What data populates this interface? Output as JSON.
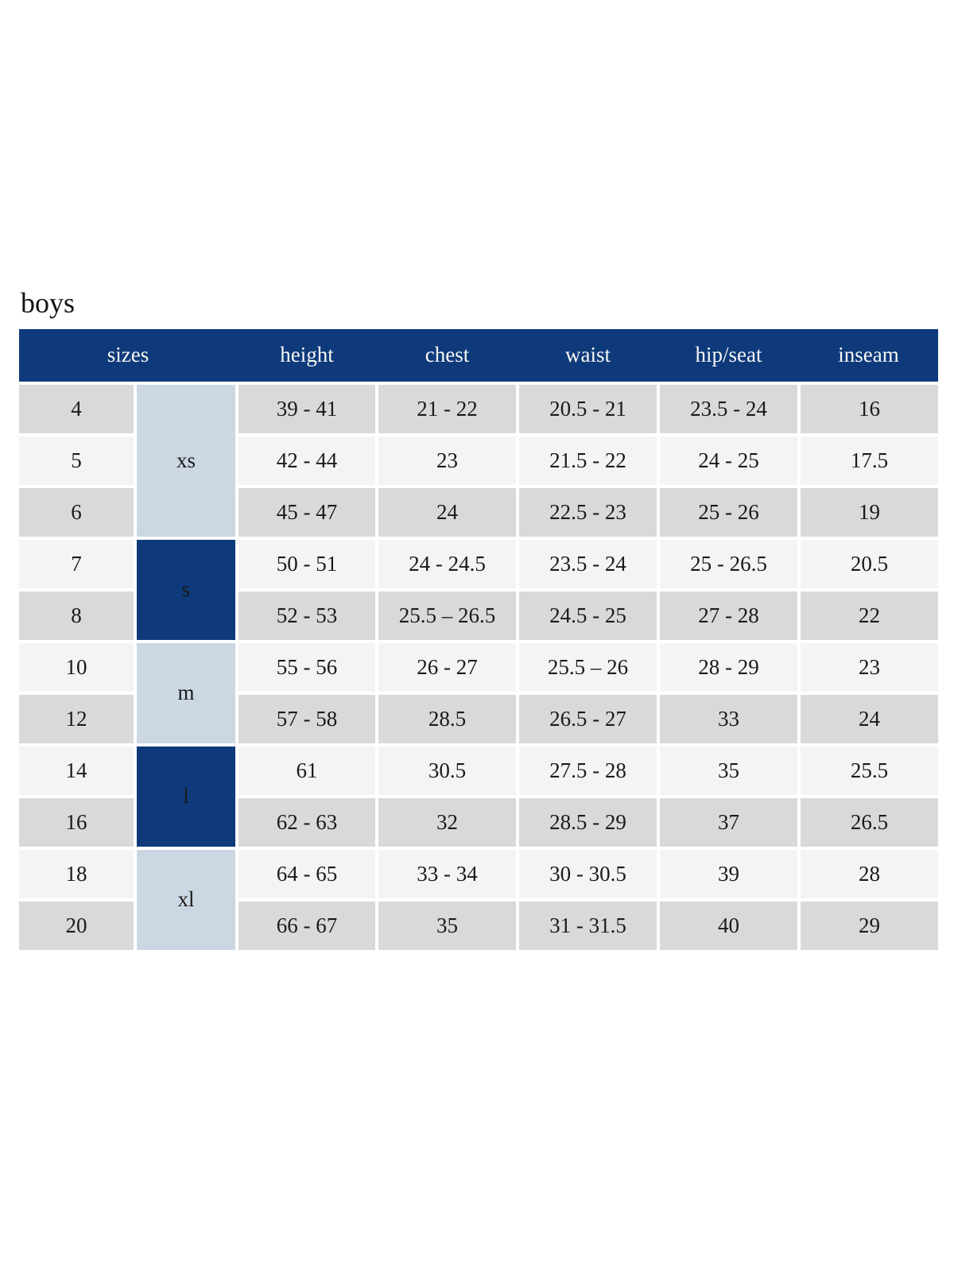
{
  "title": "boys",
  "colors": {
    "header_bg": "#0e3a7b",
    "header_text": "#f7f7f4",
    "group_dark_bg": "#0e3a7b",
    "group_light_bg": "#ccd7e4",
    "row_gray": "#d9d9d9",
    "row_light": "#f4f4f4",
    "gutter": "#ffffff",
    "body_text": "#1a1a1a"
  },
  "table": {
    "headers": [
      "sizes",
      "height",
      "chest",
      "waist",
      "hip/seat",
      "inseam"
    ],
    "groups": [
      {
        "label": "xs",
        "shade": "light",
        "rows": [
          {
            "size": "4",
            "height": "39 - 41",
            "chest": "21 - 22",
            "waist": "20.5 - 21",
            "hip_seat": "23.5 - 24",
            "inseam": "16"
          },
          {
            "size": "5",
            "height": "42 - 44",
            "chest": "23",
            "waist": "21.5 - 22",
            "hip_seat": "24 - 25",
            "inseam": "17.5"
          },
          {
            "size": "6",
            "height": "45 - 47",
            "chest": "24",
            "waist": "22.5 - 23",
            "hip_seat": "25 - 26",
            "inseam": "19"
          }
        ]
      },
      {
        "label": "s",
        "shade": "dark",
        "rows": [
          {
            "size": "7",
            "height": "50 - 51",
            "chest": "24 - 24.5",
            "waist": "23.5 - 24",
            "hip_seat": "25 - 26.5",
            "inseam": "20.5"
          },
          {
            "size": "8",
            "height": "52 - 53",
            "chest": "25.5 – 26.5",
            "waist": "24.5 - 25",
            "hip_seat": "27 - 28",
            "inseam": "22"
          }
        ]
      },
      {
        "label": "m",
        "shade": "light",
        "rows": [
          {
            "size": "10",
            "height": "55 - 56",
            "chest": "26 - 27",
            "waist": "25.5 – 26",
            "hip_seat": "28 - 29",
            "inseam": "23"
          },
          {
            "size": "12",
            "height": "57 - 58",
            "chest": "28.5",
            "waist": "26.5 - 27",
            "hip_seat": "33",
            "inseam": "24"
          }
        ]
      },
      {
        "label": "l",
        "shade": "dark",
        "rows": [
          {
            "size": "14",
            "height": "61",
            "chest": "30.5",
            "waist": "27.5 - 28",
            "hip_seat": "35",
            "inseam": "25.5"
          },
          {
            "size": "16",
            "height": "62 - 63",
            "chest": "32",
            "waist": "28.5 - 29",
            "hip_seat": "37",
            "inseam": "26.5"
          }
        ]
      },
      {
        "label": "xl",
        "shade": "light",
        "rows": [
          {
            "size": "18",
            "height": "64 - 65",
            "chest": "33 - 34",
            "waist": "30 - 30.5",
            "hip_seat": "39",
            "inseam": "28"
          },
          {
            "size": "20",
            "height": "66 - 67",
            "chest": "35",
            "waist": "31 - 31.5",
            "hip_seat": "40",
            "inseam": "29"
          }
        ]
      }
    ]
  },
  "chart_data": {
    "type": "table",
    "title": "boys",
    "columns": [
      "sizes (number)",
      "sizes (letter)",
      "height",
      "chest",
      "waist",
      "hip/seat",
      "inseam"
    ],
    "rows": [
      [
        "4",
        "xs",
        "39 - 41",
        "21 - 22",
        "20.5 - 21",
        "23.5 - 24",
        "16"
      ],
      [
        "5",
        "xs",
        "42 - 44",
        "23",
        "21.5 - 22",
        "24 - 25",
        "17.5"
      ],
      [
        "6",
        "xs",
        "45 - 47",
        "24",
        "22.5 - 23",
        "25 - 26",
        "19"
      ],
      [
        "7",
        "s",
        "50 - 51",
        "24 - 24.5",
        "23.5 - 24",
        "25 - 26.5",
        "20.5"
      ],
      [
        "8",
        "s",
        "52 - 53",
        "25.5 – 26.5",
        "24.5 - 25",
        "27 - 28",
        "22"
      ],
      [
        "10",
        "m",
        "55 - 56",
        "26 - 27",
        "25.5 – 26",
        "28 - 29",
        "23"
      ],
      [
        "12",
        "m",
        "57 - 58",
        "28.5",
        "26.5 - 27",
        "33",
        "24"
      ],
      [
        "14",
        "l",
        "61",
        "30.5",
        "27.5 - 28",
        "35",
        "25.5"
      ],
      [
        "16",
        "l",
        "62 - 63",
        "32",
        "28.5 - 29",
        "37",
        "26.5"
      ],
      [
        "18",
        "xl",
        "64 - 65",
        "33 - 34",
        "30 - 30.5",
        "39",
        "28"
      ],
      [
        "20",
        "xl",
        "66 - 67",
        "35",
        "31 - 31.5",
        "40",
        "29"
      ]
    ]
  }
}
